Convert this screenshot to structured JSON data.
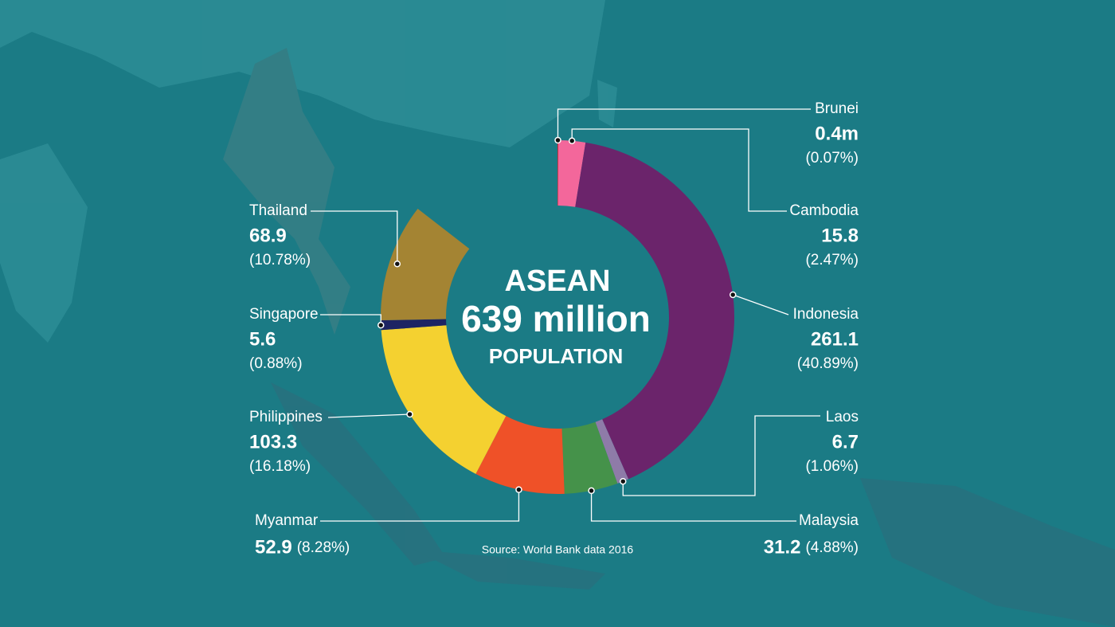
{
  "chart_data": {
    "type": "donut",
    "center_title": "ASEAN",
    "center_value": "639 million",
    "center_subtitle": "POPULATION",
    "source": "Source: World Bank data 2016",
    "categories": [
      "Brunei",
      "Cambodia",
      "Indonesia",
      "Laos",
      "Malaysia",
      "Myanmar",
      "Philippines",
      "Singapore",
      "Thailand"
    ],
    "values": [
      0.4,
      15.8,
      261.1,
      6.7,
      31.2,
      52.9,
      103.3,
      5.6,
      68.9
    ],
    "value_labels": [
      "0.4m",
      "15.8",
      "261.1",
      "6.7",
      "31.2",
      "52.9",
      "103.3",
      "5.6",
      "68.9"
    ],
    "percents": [
      0.07,
      2.47,
      40.89,
      1.06,
      4.88,
      8.28,
      16.18,
      0.88,
      10.78
    ],
    "percent_labels": [
      "(0.07%)",
      "(2.47%)",
      "(40.89%)",
      "(1.06%)",
      "(4.88%)",
      "(8.28%)",
      "(16.18%)",
      "(0.88%)",
      "(10.78%)"
    ],
    "colors": [
      "#d6202a",
      "#f3679b",
      "#6b246b",
      "#8e7ba8",
      "#45924a",
      "#ef5128",
      "#f4d130",
      "#1d2463",
      "#a48433"
    ]
  }
}
